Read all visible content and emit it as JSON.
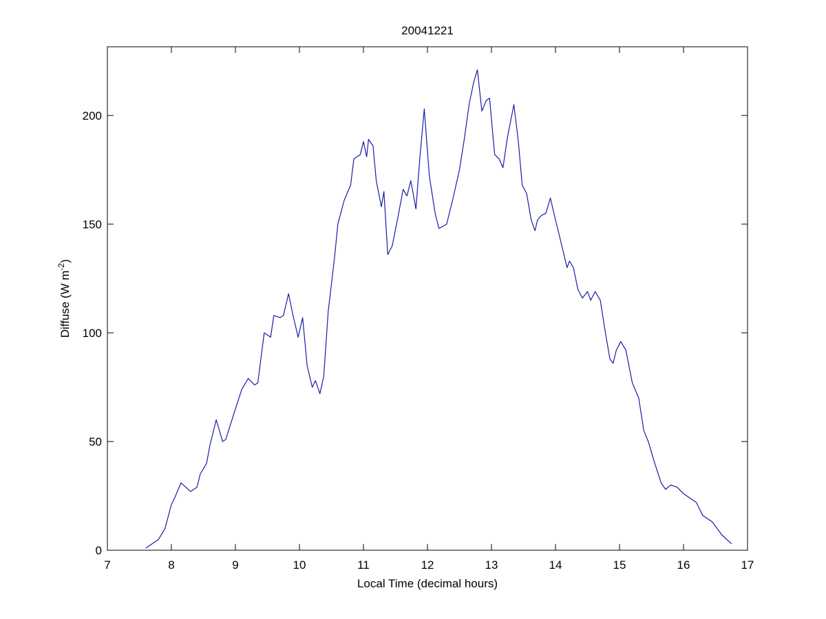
{
  "chart_data": {
    "type": "line",
    "title": "20041221",
    "xlabel": "Local Time (decimal hours)",
    "ylabel": {
      "text": "Diffuse (W m",
      "superscript": "-2",
      "suffix": ")"
    },
    "xlim": [
      7,
      17
    ],
    "xticks": [
      7,
      8,
      9,
      10,
      11,
      12,
      13,
      14,
      15,
      16,
      17
    ],
    "ylim": [
      0,
      231.6
    ],
    "yticks": [
      0,
      50,
      100,
      150,
      200
    ],
    "grid": false,
    "x": [
      7.6,
      7.8,
      7.9,
      8.0,
      8.05,
      8.15,
      8.3,
      8.4,
      8.45,
      8.55,
      8.6,
      8.7,
      8.8,
      8.85,
      9.0,
      9.1,
      9.2,
      9.3,
      9.35,
      9.45,
      9.55,
      9.6,
      9.7,
      9.75,
      9.83,
      9.9,
      9.98,
      10.05,
      10.12,
      10.2,
      10.25,
      10.32,
      10.38,
      10.45,
      10.55,
      10.6,
      10.7,
      10.8,
      10.85,
      10.95,
      11.0,
      11.05,
      11.08,
      11.15,
      11.2,
      11.28,
      11.32,
      11.38,
      11.45,
      11.55,
      11.62,
      11.68,
      11.74,
      11.82,
      11.88,
      11.95,
      12.03,
      12.12,
      12.18,
      12.3,
      12.4,
      12.5,
      12.58,
      12.65,
      12.72,
      12.78,
      12.85,
      12.92,
      12.97,
      13.05,
      13.12,
      13.18,
      13.25,
      13.35,
      13.42,
      13.48,
      13.55,
      13.62,
      13.68,
      13.72,
      13.78,
      13.85,
      13.92,
      14.0,
      14.1,
      14.18,
      14.22,
      14.28,
      14.35,
      14.42,
      14.5,
      14.55,
      14.62,
      14.7,
      14.78,
      14.85,
      14.9,
      14.95,
      15.02,
      15.1,
      15.2,
      15.3,
      15.38,
      15.45,
      15.55,
      15.65,
      15.72,
      15.8,
      15.9,
      16.0,
      16.1,
      16.2,
      16.3,
      16.45,
      16.6,
      16.75
    ],
    "series": [
      {
        "name": "Diffuse",
        "color": "#1a1aa6",
        "values": [
          1,
          5,
          10,
          21,
          24,
          31,
          27,
          29,
          35,
          40,
          48,
          60,
          50,
          51,
          65,
          74,
          79,
          76,
          77,
          100,
          98,
          108,
          107,
          108,
          118,
          108,
          98,
          107,
          85,
          75,
          78,
          72,
          80,
          110,
          135,
          150,
          161,
          168,
          180,
          182,
          188,
          181,
          189,
          186,
          170,
          158,
          165,
          136,
          140,
          155,
          166,
          163,
          170,
          157,
          180,
          203,
          172,
          155,
          148,
          150,
          162,
          175,
          190,
          205,
          215,
          221,
          202,
          207,
          208,
          182,
          180,
          176,
          190,
          205,
          188,
          168,
          164,
          152,
          147,
          152,
          154,
          155,
          162,
          152,
          140,
          130,
          133,
          130,
          120,
          116,
          119,
          115,
          119,
          115,
          100,
          88,
          86,
          92,
          96,
          92,
          77,
          70,
          55,
          50,
          40,
          31,
          28,
          30,
          29,
          26,
          24,
          22,
          16,
          13,
          7,
          3
        ]
      }
    ]
  }
}
